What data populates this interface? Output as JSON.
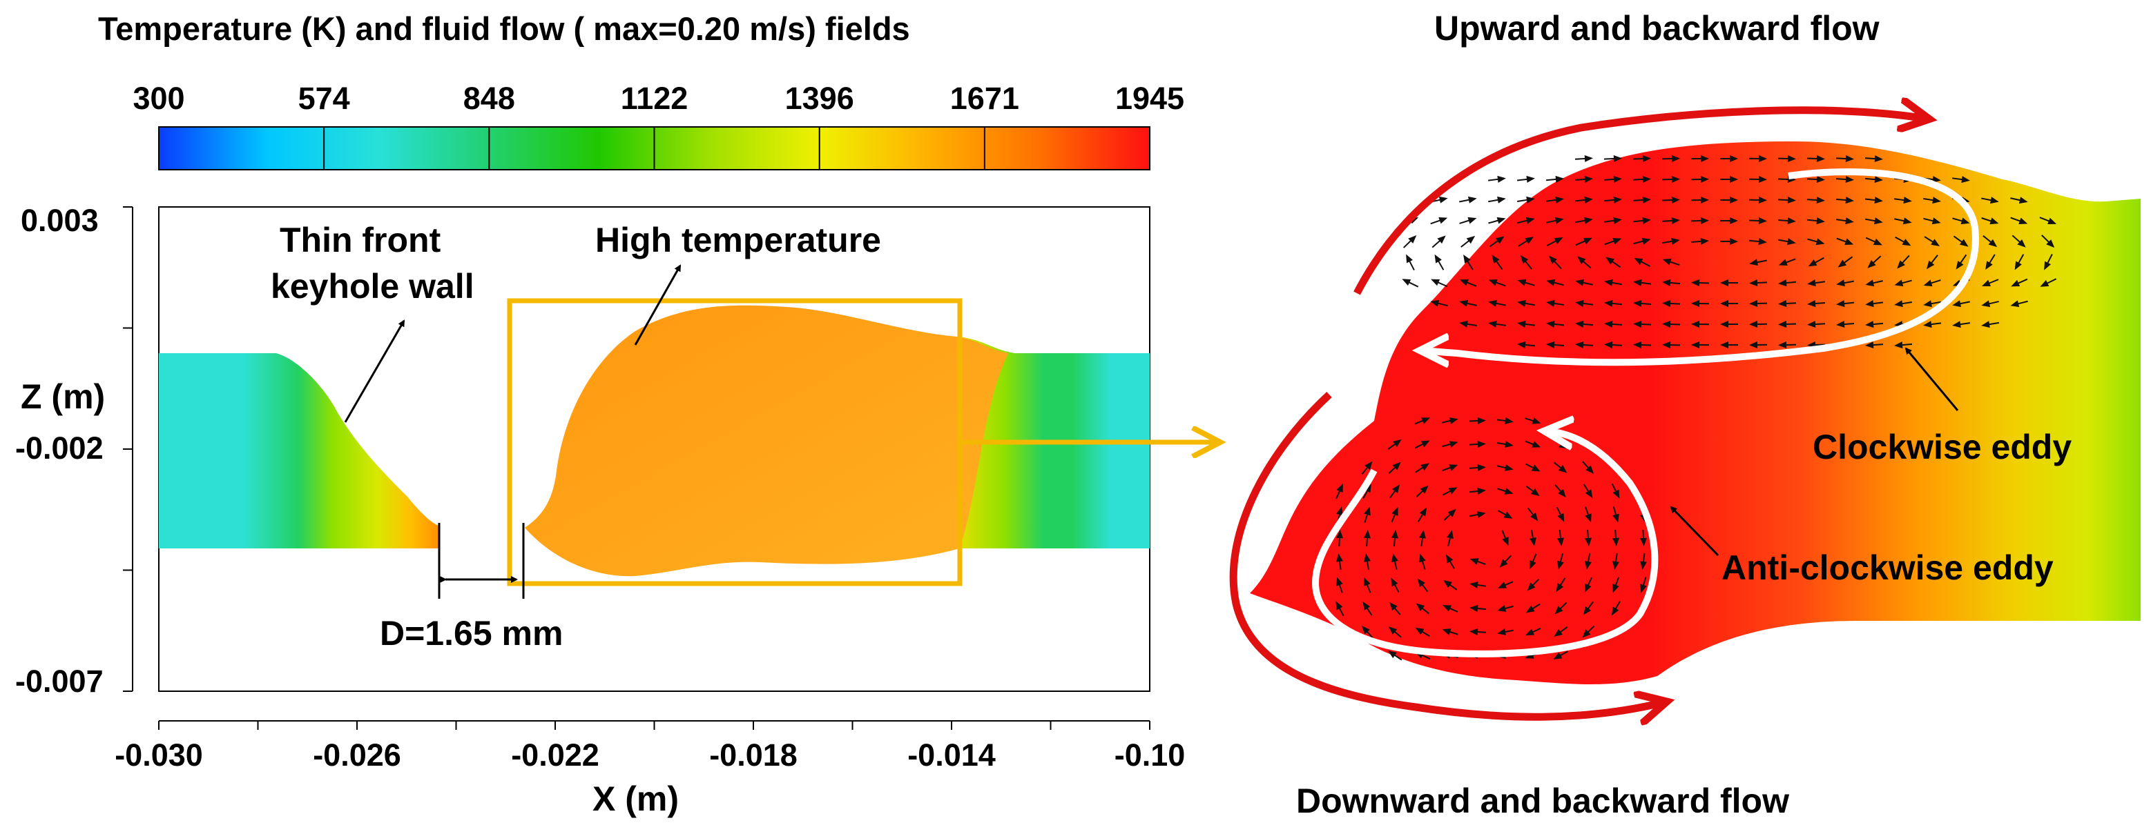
{
  "colorbar": {
    "title": "Temperature (K) and fluid flow ( max=0.20 m/s) fields",
    "ticks": [
      "300",
      "574",
      "848",
      "1122",
      "1396",
      "1671",
      "1945"
    ],
    "colors": [
      "#0a3cff",
      "#00c8ff",
      "#28e0d8",
      "#22d070",
      "#20c800",
      "#a0e000",
      "#f0f000",
      "#ffb000",
      "#ff7000",
      "#ff1010"
    ]
  },
  "left_plot": {
    "x_axis_label": "X (m)",
    "y_axis_label": "Z (m)",
    "x_ticks": [
      "-0.030",
      "-0.026",
      "-0.022",
      "-0.018",
      "-0.014",
      "-0.10"
    ],
    "y_ticks": [
      "0.003",
      "-0.002",
      "-0.007"
    ],
    "annotations": {
      "thin_front_line1": "Thin front",
      "thin_front_line2": "keyhole wall",
      "high_temp": "High temperature",
      "distance": "D=1.65 mm"
    },
    "highlight_color": "#f5b800"
  },
  "right_detail": {
    "top_label": "Upward and backward flow",
    "bottom_label": "Downward and backward flow",
    "eddy_clockwise": "Clockwise eddy",
    "eddy_anticlockwise": "Anti-clockwise eddy",
    "flow_arrow_color": "#e01010",
    "eddy_arrow_color": "#ffffff"
  }
}
